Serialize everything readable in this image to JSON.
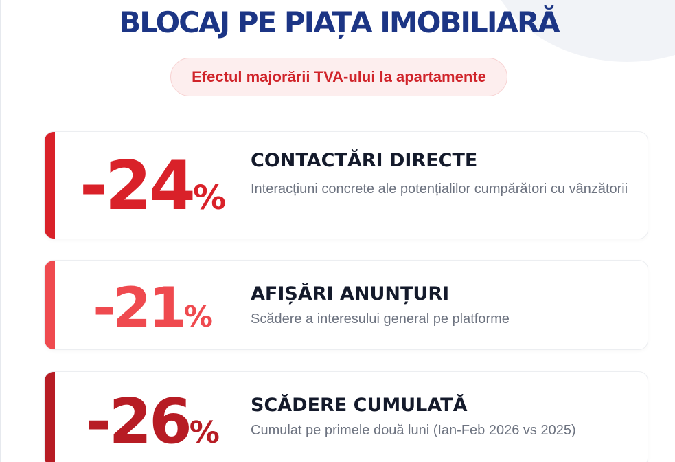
{
  "header": {
    "title": "BLOCAJ PE PIAȚA IMOBILIARĂ",
    "subtitle": "Efectul majorării TVA-ului la apartamente"
  },
  "stats": [
    {
      "value": "-24",
      "unit": "%",
      "heading": "CONTACTĂRI DIRECTE",
      "description": "Interacțiuni concrete ale potențialilor cumpărători cu vânzătorii",
      "color": "#d92129"
    },
    {
      "value": "-21",
      "unit": "%",
      "heading": "AFIȘĂRI ANUNȚURI",
      "description": "Scădere a interesului general pe platforme",
      "color": "#ef4a4f"
    },
    {
      "value": "-26",
      "unit": "%",
      "heading": "SCĂDERE CUMULATĂ",
      "description": "Cumulat pe primele două luni (Ian-Feb 2026 vs 2025)",
      "color": "#b71c24"
    }
  ],
  "colors": {
    "title": "#1c3585",
    "subtitle_text": "#d0242a",
    "subtitle_bg": "#fdeeee"
  }
}
